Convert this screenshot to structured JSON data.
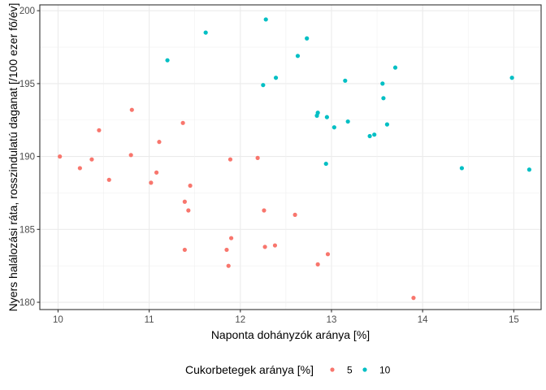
{
  "chart_data": {
    "type": "scatter",
    "title": "",
    "xlabel": "Naponta dohányzók aránya [%]",
    "ylabel": "Nyers halálozási ráta, rosszindulatú daganat [/100 ezer fő/év]",
    "xlim": [
      9.8,
      15.3
    ],
    "ylim": [
      179.5,
      200.4
    ],
    "x_ticks": [
      10,
      11,
      12,
      13,
      14,
      15
    ],
    "y_ticks": [
      180,
      185,
      190,
      195,
      200
    ],
    "grid": true,
    "legend": {
      "title": "Cukorbetegek aránya [%]",
      "position": "bottom"
    },
    "series": [
      {
        "name": "5",
        "color": "#F8766D",
        "points": [
          [
            10.02,
            190.0
          ],
          [
            10.24,
            189.2
          ],
          [
            10.37,
            189.8
          ],
          [
            10.45,
            191.8
          ],
          [
            10.56,
            188.4
          ],
          [
            10.8,
            190.1
          ],
          [
            10.81,
            193.2
          ],
          [
            11.02,
            188.2
          ],
          [
            11.08,
            188.9
          ],
          [
            11.11,
            191.0
          ],
          [
            11.37,
            192.3
          ],
          [
            11.39,
            186.9
          ],
          [
            11.39,
            183.6
          ],
          [
            11.43,
            186.3
          ],
          [
            11.45,
            188.0
          ],
          [
            11.85,
            183.6
          ],
          [
            11.87,
            182.5
          ],
          [
            11.9,
            184.4
          ],
          [
            11.89,
            189.8
          ],
          [
            12.19,
            189.9
          ],
          [
            12.26,
            186.3
          ],
          [
            12.27,
            183.8
          ],
          [
            12.38,
            183.9
          ],
          [
            12.6,
            186.0
          ],
          [
            12.85,
            182.6
          ],
          [
            12.96,
            183.3
          ],
          [
            13.9,
            180.3
          ]
        ]
      },
      {
        "name": "10",
        "color": "#00BFC4",
        "points": [
          [
            11.2,
            196.6
          ],
          [
            11.62,
            198.5
          ],
          [
            12.25,
            194.9
          ],
          [
            12.28,
            199.4
          ],
          [
            12.39,
            195.4
          ],
          [
            12.63,
            196.9
          ],
          [
            12.73,
            198.1
          ],
          [
            12.84,
            192.8
          ],
          [
            12.85,
            193.0
          ],
          [
            12.94,
            189.5
          ],
          [
            12.95,
            192.7
          ],
          [
            13.03,
            192.0
          ],
          [
            13.15,
            195.2
          ],
          [
            13.18,
            192.4
          ],
          [
            13.42,
            191.4
          ],
          [
            13.47,
            191.5
          ],
          [
            13.56,
            195.0
          ],
          [
            13.57,
            194.0
          ],
          [
            13.61,
            192.2
          ],
          [
            13.7,
            196.1
          ],
          [
            14.43,
            189.2
          ],
          [
            14.98,
            195.4
          ],
          [
            15.17,
            189.1
          ]
        ]
      }
    ]
  }
}
